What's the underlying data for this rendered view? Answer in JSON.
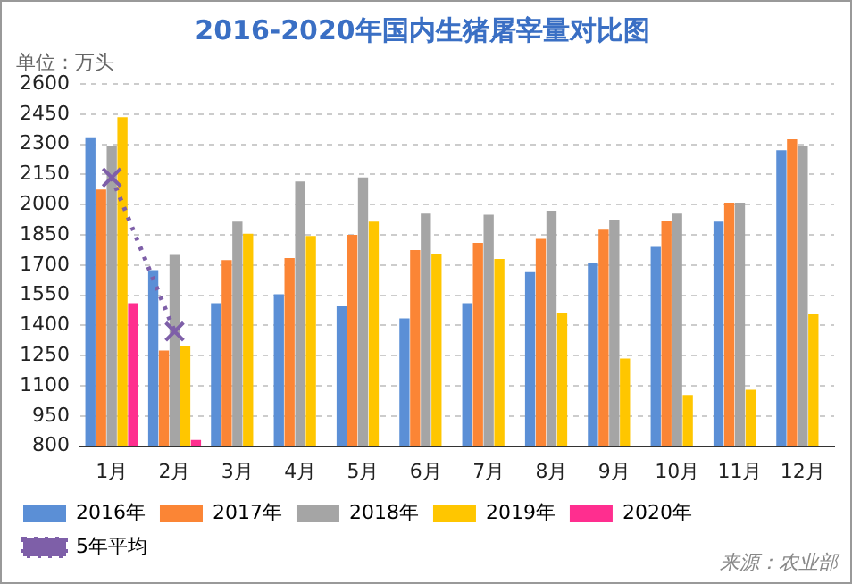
{
  "chart_data": {
    "type": "bar",
    "title": "2016-2020年国内生猪屠宰量对比图",
    "ylabel": "单位：万头",
    "annotations": [
      "来源：农业部"
    ],
    "categories": [
      "1月",
      "2月",
      "3月",
      "4月",
      "5月",
      "6月",
      "7月",
      "8月",
      "9月",
      "10月",
      "11月",
      "12月"
    ],
    "series": [
      {
        "name": "2016年",
        "color": "#5b8fd6",
        "values": [
          2335,
          1675,
          1510,
          1555,
          1495,
          1435,
          1510,
          1665,
          1710,
          1790,
          1915,
          2270
        ]
      },
      {
        "name": "2017年",
        "color": "#fb8535",
        "values": [
          2075,
          1275,
          1725,
          1735,
          1850,
          1775,
          1810,
          1830,
          1875,
          1920,
          2010,
          2325
        ]
      },
      {
        "name": "2018年",
        "color": "#a5a5a5",
        "values": [
          2290,
          1750,
          1915,
          2115,
          2135,
          1955,
          1950,
          1970,
          1925,
          1955,
          2010,
          2290
        ]
      },
      {
        "name": "2019年",
        "color": "#ffc600",
        "values": [
          2435,
          1295,
          1855,
          1845,
          1915,
          1755,
          1730,
          1460,
          1235,
          1055,
          1080,
          1455
        ]
      },
      {
        "name": "2020年",
        "color": "#ff2e8f",
        "values": [
          1510,
          830,
          null,
          null,
          null,
          null,
          null,
          null,
          null,
          null,
          null,
          null
        ]
      },
      {
        "name": "5年平均",
        "type": "line",
        "color": "#7e5fa8",
        "marker": "cross",
        "line_style": "dotted",
        "values": [
          2135,
          1370,
          null,
          null,
          null,
          null,
          null,
          null,
          null,
          null,
          null,
          null
        ]
      }
    ],
    "ylim": [
      800,
      2600
    ],
    "yticks": [
      800,
      950,
      1100,
      1250,
      1400,
      1550,
      1700,
      1850,
      2000,
      2150,
      2300,
      2450,
      2600
    ],
    "grid": "y",
    "legend": "bottom"
  }
}
